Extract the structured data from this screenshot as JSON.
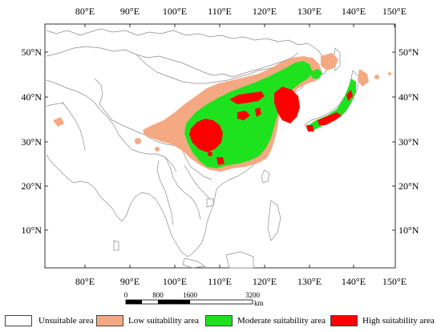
{
  "map": {
    "lon_labels": [
      "80°E",
      "90°E",
      "100°E",
      "110°E",
      "120°E",
      "130°E",
      "140°E",
      "150°E"
    ],
    "lat_labels": [
      "50°N",
      "40°N",
      "30°N",
      "20°N",
      "10°N"
    ],
    "scale_bar": {
      "labels": [
        "0",
        "800",
        "1600",
        "3200"
      ],
      "unit": "km"
    }
  },
  "legend": {
    "items": [
      {
        "label": "Unsuitable area",
        "color": "#ffffff"
      },
      {
        "label": "Low suitability area",
        "color": "#f5a983"
      },
      {
        "label": "Moderate suitability area",
        "color": "#1fe21f"
      },
      {
        "label": "High suitability area",
        "color": "#ff0000"
      }
    ]
  }
}
